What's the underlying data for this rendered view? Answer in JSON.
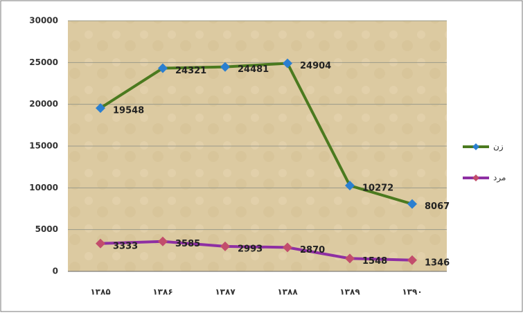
{
  "chart_data": {
    "type": "line",
    "categories": [
      "۱۳۸۵",
      "۱۳۸۶",
      "۱۳۸۷",
      "۱۳۸۸",
      "۱۳۸۹",
      "۱۳۹۰"
    ],
    "series": [
      {
        "name": "زن",
        "color": "#4b7a1f",
        "marker_color": "#2b7fd0",
        "values": [
          19548,
          24321,
          24481,
          24904,
          10272,
          8067
        ]
      },
      {
        "name": "مرد",
        "color": "#8e2fa3",
        "marker_color": "#c24d6c",
        "values": [
          3333,
          3585,
          2993,
          2870,
          1548,
          1346
        ]
      }
    ],
    "ylim": [
      0,
      30000
    ],
    "yticks": [
      0,
      5000,
      10000,
      15000,
      20000,
      25000,
      30000
    ],
    "grid": true,
    "legend": "right"
  }
}
